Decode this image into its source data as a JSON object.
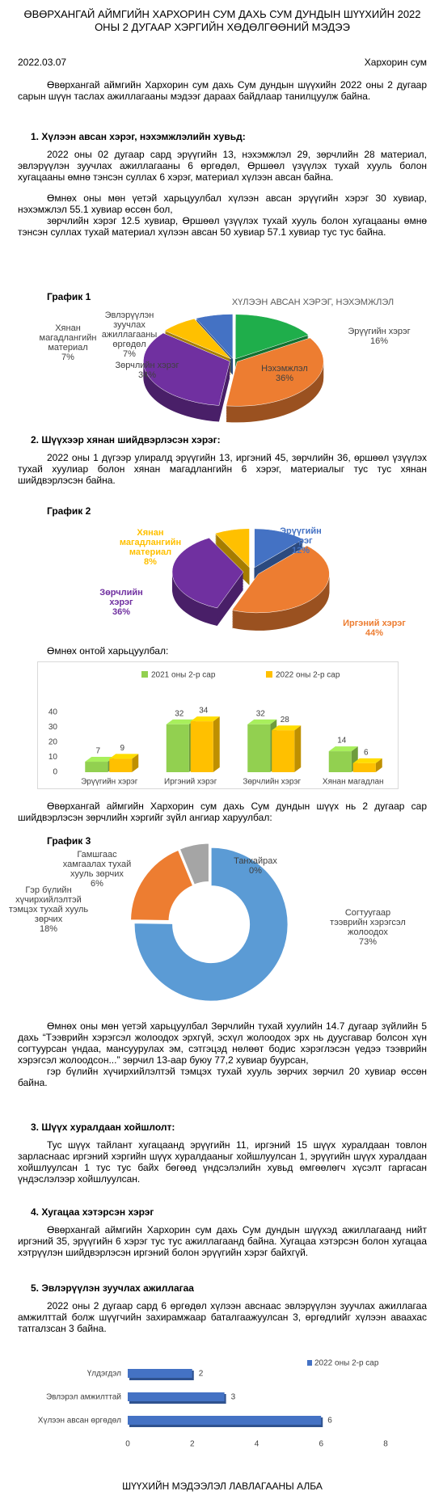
{
  "header": {
    "title": "ӨВӨРХАНГАЙ АЙМГИЙН ХАРХОРИН СУМ ДАХЬ СУМ ДУНДЫН ШҮҮХИЙН 2022 ОНЫ 2 ДУГААР ХЭРГИЙН ХӨДӨЛГӨӨНИЙ МЭДЭЭ",
    "date": "2022.03.07",
    "place": "Хархорин сум"
  },
  "intro": "Өвөрхангай аймгийн Хархорин сум дахь Сум дундын шүүхийн 2022 оны 2 дугаар сарын шүүн таслах ажиллагааны мэдээг дараах байдлаар танилцуулж байна.",
  "section1": {
    "heading": "1.  Хүлээн авсан хэрэг, нэхэмжлэлийн хувьд:",
    "paragraphs": [
      "2022 оны 02 дугаар сард эрүүгийн 13, нэхэмжлэл 29, зөрчлийн 28 материал, эвлэрүүлэн зуучлах ажиллагааны 6 өргөдөл, Өршөөл үзүүлэх тухай хууль болон хугацааны өмнө тэнсэн суллах 6 хэрэг, материал хүлээн авсан байна.",
      "Өмнөх оны мөн үетэй харьцуулбал хүлээн авсан эрүүгийн хэрэг 30 хувиар, нэхэмжлэл 55.1 хувиар өссөн бол,",
      "зөрчлийн хэрэг 12.5 хувиар,  Өршөөл үзүүлэх тухай хууль болон хугацааны өмнө тэнсэн суллах тухай материал хүлээн авсан 50 хувиар 57.1 хувиар тус тус байна."
    ]
  },
  "graph1": {
    "label": "График 1",
    "type": "pie",
    "title": "ХҮЛЭЭН АВСАН ХЭРЭГ, НЭХЭМЖЛЭЛ",
    "categories": [
      "Эрүүгийн хэрэг",
      "Нэхэмжлэл",
      "Зөрчлийн хэрэг",
      "Хянан магадлангийн материал",
      "Эвлэрүүлэн зуучлах ажиллагааны өргөдөл"
    ],
    "values": [
      16,
      36,
      34,
      7,
      7
    ],
    "value_labels": [
      "16%",
      "36%",
      "34%",
      "7%",
      "7%"
    ],
    "colors": [
      "#1fae4b",
      "#ed7d31",
      "#7030a0",
      "#ffc000",
      "#4472c4"
    ]
  },
  "section2": {
    "heading": "2.  Шүүхээр хянан шийдвэрлэсэн хэрэг:",
    "paragraphs": [
      "2022 оны 1 дүгээр улиралд эрүүгийн 13, иргэний 45, зөрчлийн 36, өршөөл үзүүлэх тухай хуулиар болон хянан магадлангийн 6 хэрэг, материалыг тус тус хянан шийдвэрлэсэн байна."
    ]
  },
  "graph2": {
    "label": "График 2",
    "type": "pie",
    "categories": [
      "Эрүүгийн хэрэг",
      "Иргэний хэрэг",
      "Зөрчлийн хэрэг",
      "Хянан магадлангийн материал"
    ],
    "values": [
      12,
      44,
      36,
      8
    ],
    "value_labels": [
      "12%",
      "44%",
      "36%",
      "8%"
    ],
    "colors": [
      "#4472c4",
      "#ed7d31",
      "#7030a0",
      "#ffc000"
    ]
  },
  "comparison": {
    "text": "Өмнөх онтой харьцуулбал:",
    "chart": {
      "type": "bar",
      "categories": [
        "Эрүүгийн хэрэг",
        "Иргэний хэрэг",
        "Зөрчлийн хэрэг",
        "Хянан магадлан"
      ],
      "series": [
        {
          "name": "2021 оны 2-р сар",
          "color": "#92d050",
          "values": [
            7,
            32,
            32,
            14
          ]
        },
        {
          "name": "2022 оны 2-р сар",
          "color": "#ffc000",
          "values": [
            9,
            34,
            28,
            6
          ]
        }
      ],
      "ylim": [
        0,
        40
      ],
      "yticks": [
        0,
        10,
        20,
        30,
        40
      ]
    }
  },
  "breakdown_intro": "Өвөрхангай аймгийн Хархорин сум дахь Сум дундын шүүх нь 2 дугаар сар шийдвэрлэсэн зөрчлийн хэргийг зүйл ангиар харуулбал:",
  "graph3": {
    "label": "График 3",
    "type": "donut",
    "categories": [
      "Согтуугаар тээврийн хэрэгсэл жолоодох",
      "Гэр бүлийн хүчирхийлэлтэй тэмцэх тухай хууль зөрчих",
      "Гамшгаас хамгаалах тухай хууль зөрчих",
      "Танхайрах"
    ],
    "values": [
      73,
      18,
      6,
      0
    ],
    "value_labels": [
      "73%",
      "18%",
      "6%",
      "0%"
    ],
    "colors": [
      "#5b9bd5",
      "#ed7d31",
      "#a5a5a5",
      "#ffc000"
    ]
  },
  "breakdown_notes": [
    "Өмнөх оны мөн үетэй харьцуулбал Зөрчлийн тухай хуулийн 14.7 дугаар зүйлийн 5 дахь “Тээврийн хэрэгсэл жолоодох эрхгүй, эсхүл жолоодох эрх нь дуусгавар болсон хүн согтуурсан үндаа, мансуурулах эм, сэтгэцэд нөлөөт бодис хэрэглэсэн үедээ тээврийн хэрэгсэл жолоодсон...” зөрчил 13-аар буюу 77,2 хувиар буурсан,",
    "гэр бүлийн хүчирхийлэлтэй тэмцэх тухай хууль зөрчих зөрчил 20 хувиар өссөн байна."
  ],
  "section3": {
    "heading": "3.  Шүүх хуралдаан хойшлолт:",
    "paragraphs": [
      "Тус шүүх тайлант хугацаанд эрүүгийн 11, иргэний 15 шүүх хуралдаан товлон зарласнаас иргэний хэргийн шүүх хуралдааныг хойшлуулсан 1, эрүүгийн шүүх хуралдаан хойшлуулсан 1 тус тус байх бөгөөд үндсэлэлийн хувьд өмгөөлөгч хүсэлт гаргасан үндэслэлээр хойшлуулсан."
    ]
  },
  "section4": {
    "heading": "4.  Хугацаа хэтэрсэн хэрэг",
    "paragraphs": [
      "Өвөрхангай аймгийн Хархорин сум дахь Сум дундын шүүхэд ажиллагаанд нийт иргэний 35, эрүүгийн 6 хэрэг тус тус ажиллагаанд байна. Хугацаа хэтэрсэн болон хугацаа хэтрүүлэн шийдвэрлэсэн иргэний болон эрүүгийн хэрэг байхгүй."
    ]
  },
  "section5": {
    "heading": "5.  Эвлэрүүлэн зуучлах ажиллагаа",
    "paragraphs": [
      "2022 оны 2 дугаар сард 6 өргөдөл хүлээн авснаас эвлэрүүлэн зуучлах ажиллагаа амжилттай болж шүүгчийн захирамжаар баталгаажуулсан 3, өргөдлийг хүлээн аваахас татгалзсан 3 байна."
    ]
  },
  "mediation_chart": {
    "type": "hbar",
    "categories": [
      "Үлдэгдэл",
      "Эвлэрэл амжилттай",
      "Хүлээн авсан өргөдөл"
    ],
    "series": [
      {
        "name": "2022 оны 2-р сар",
        "color": "#4472c4",
        "values": [
          2,
          3,
          6
        ]
      }
    ],
    "xlim": [
      0,
      8
    ],
    "xticks": [
      0,
      2,
      4,
      6,
      8
    ]
  },
  "footer": "ШҮҮХИЙН МЭДЭЭЛЭЛ ЛАВЛАГААНЫ АЛБА"
}
